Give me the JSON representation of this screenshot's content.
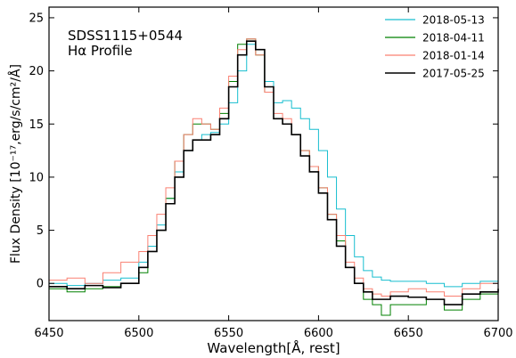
{
  "chart_data": {
    "type": "line",
    "step": true,
    "annotation": [
      "SDSS1115+0544",
      "Hα Profile"
    ],
    "xlabel": "Wavelength[Å, rest]",
    "ylabel": "Flux Density [10⁻¹⁷,erg/s/cm²/Å]",
    "xlim": [
      6450,
      6700
    ],
    "ylim": [
      -3.5,
      26
    ],
    "xticks": [
      6450,
      6500,
      6550,
      6600,
      6650,
      6700
    ],
    "yticks": [
      0,
      5,
      10,
      15,
      20,
      25
    ],
    "legend_position": "top-right",
    "grid": false,
    "x": [
      6450,
      6460,
      6470,
      6480,
      6490,
      6500,
      6505,
      6510,
      6515,
      6520,
      6525,
      6530,
      6535,
      6540,
      6545,
      6550,
      6555,
      6560,
      6565,
      6570,
      6575,
      6580,
      6585,
      6590,
      6595,
      6600,
      6605,
      6610,
      6615,
      6620,
      6625,
      6630,
      6635,
      6640,
      6650,
      6660,
      6670,
      6680,
      6690,
      6700
    ],
    "series": [
      {
        "name": "2018-05-13",
        "color": "#17becf",
        "values": [
          0.0,
          -0.2,
          0.0,
          0.3,
          0.5,
          2.0,
          3.5,
          5.5,
          8.0,
          10.5,
          12.5,
          13.5,
          14.0,
          14.2,
          15.0,
          17.0,
          20.0,
          22.5,
          22.0,
          19.0,
          17.0,
          17.2,
          16.5,
          15.5,
          14.5,
          12.5,
          10.0,
          7.0,
          4.5,
          2.5,
          1.2,
          0.6,
          0.3,
          0.2,
          0.2,
          0.0,
          -0.3,
          0.0,
          0.2,
          0.3
        ]
      },
      {
        "name": "2018-04-11",
        "color": "#008000",
        "values": [
          -0.5,
          -0.8,
          -0.5,
          -0.3,
          0.0,
          1.0,
          3.0,
          5.0,
          8.0,
          11.5,
          14.0,
          15.0,
          15.0,
          14.5,
          16.0,
          19.0,
          22.5,
          23.0,
          21.5,
          18.0,
          15.5,
          15.0,
          14.0,
          12.5,
          11.0,
          9.0,
          6.5,
          4.0,
          1.5,
          0.0,
          -1.5,
          -2.0,
          -3.0,
          -2.0,
          -2.0,
          -1.5,
          -2.5,
          -1.5,
          -1.0,
          -0.5
        ]
      },
      {
        "name": "2018-01-14",
        "color": "#fa8072",
        "values": [
          0.3,
          0.5,
          0.0,
          1.0,
          2.0,
          3.0,
          4.5,
          6.5,
          9.0,
          11.5,
          14.0,
          15.5,
          15.0,
          14.5,
          16.5,
          19.5,
          22.0,
          23.0,
          21.5,
          18.0,
          16.0,
          15.5,
          14.0,
          12.5,
          11.0,
          9.0,
          6.5,
          4.5,
          2.0,
          0.5,
          -0.5,
          -1.0,
          -1.2,
          -0.8,
          -0.5,
          -0.8,
          -1.2,
          -0.5,
          0.0,
          0.2
        ]
      },
      {
        "name": "2017-05-25",
        "color": "#000000",
        "values": [
          -0.3,
          -0.5,
          -0.2,
          -0.4,
          0.0,
          1.5,
          3.0,
          5.0,
          7.5,
          10.0,
          12.5,
          13.5,
          13.5,
          14.0,
          15.5,
          18.5,
          21.5,
          22.8,
          22.0,
          18.5,
          15.5,
          15.0,
          14.0,
          12.0,
          10.5,
          8.5,
          6.0,
          3.5,
          1.5,
          0.0,
          -0.8,
          -1.5,
          -1.5,
          -1.2,
          -1.3,
          -1.5,
          -2.0,
          -1.0,
          -0.8,
          -0.5
        ]
      }
    ]
  }
}
